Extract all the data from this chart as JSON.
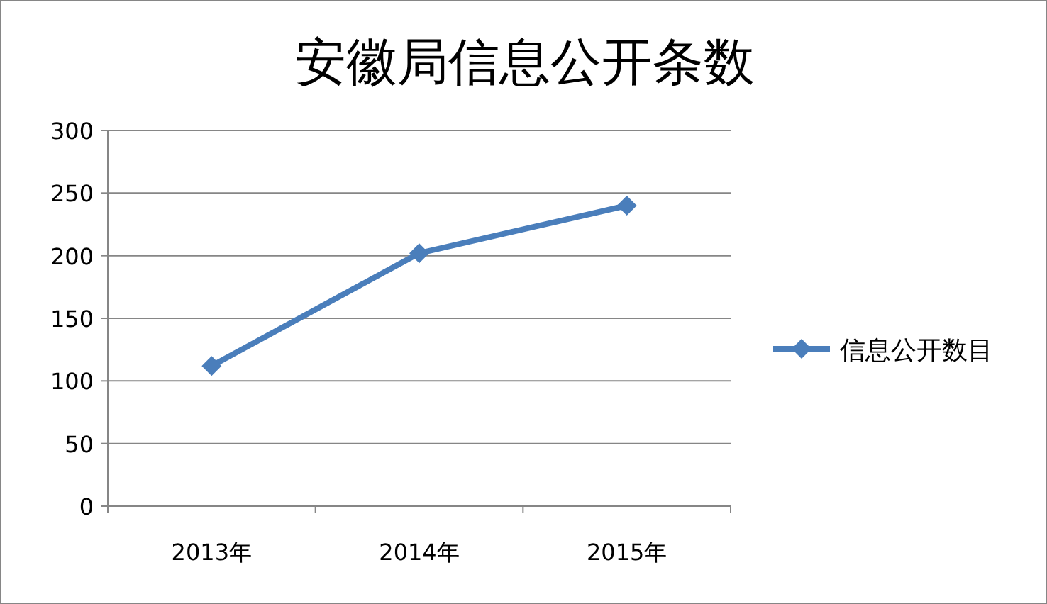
{
  "chart_data": {
    "type": "line",
    "title": "安徽局信息公开条数",
    "categories": [
      "2013年",
      "2014年",
      "2015年"
    ],
    "series": [
      {
        "name": "信息公开数目",
        "color": "#4a7ebb",
        "values": [
          112,
          202,
          240
        ]
      }
    ],
    "ylim": [
      0,
      300
    ],
    "yticks": [
      0,
      50,
      100,
      150,
      200,
      250,
      300
    ],
    "grid": "y",
    "legend": "right",
    "marker": "diamond",
    "line_style": "solid"
  }
}
